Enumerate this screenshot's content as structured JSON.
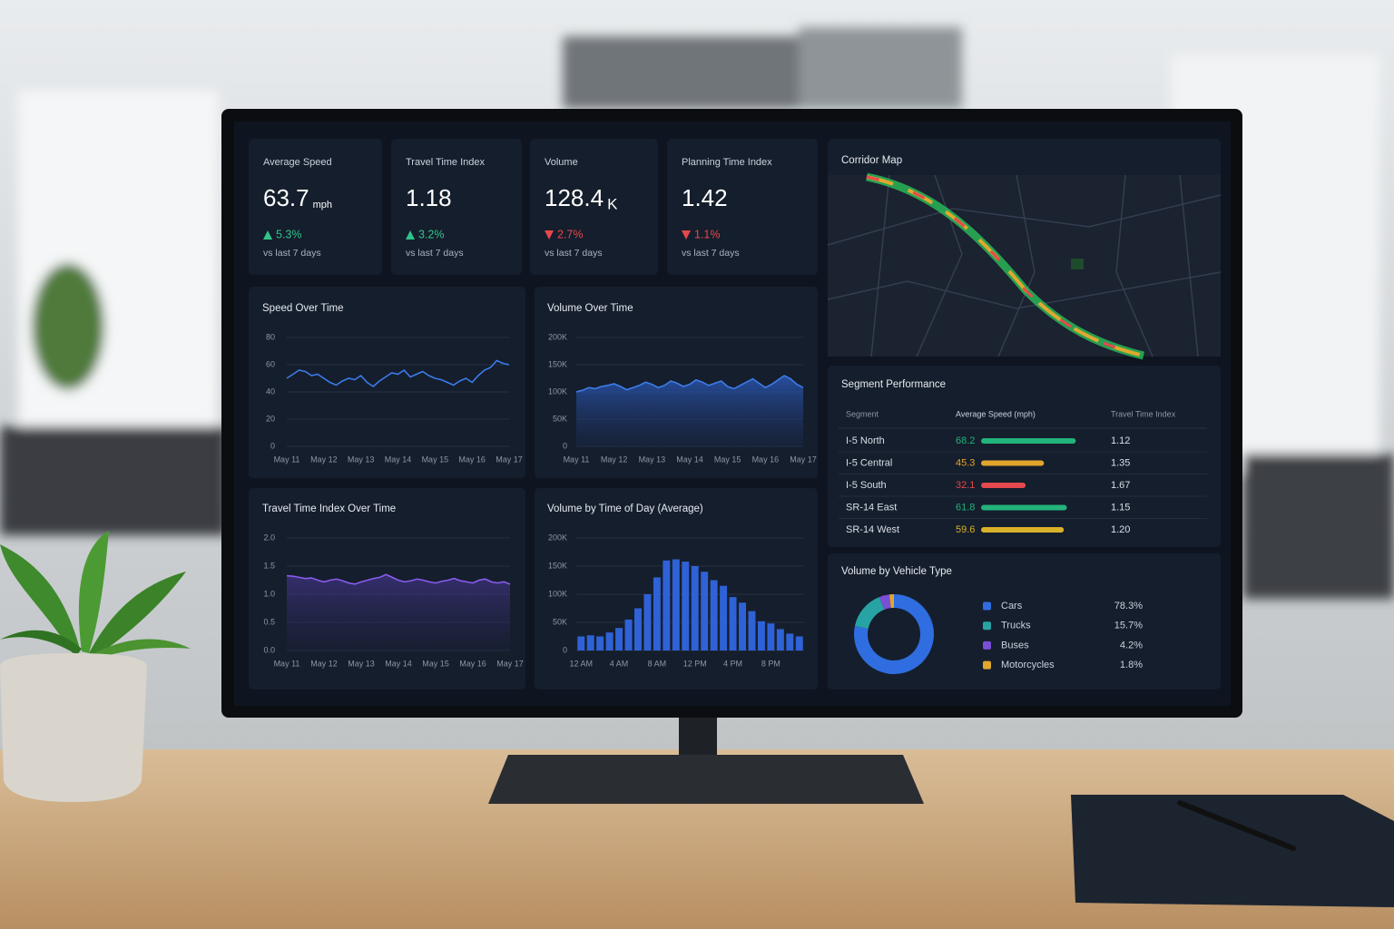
{
  "kpis": [
    {
      "label": "Average Speed",
      "value": 63.7,
      "unit": "mph",
      "change": "5.3%",
      "direction": "up",
      "note": "vs last 7 days"
    },
    {
      "label": "Travel Time Index",
      "value": 1.18,
      "change": "3.2%",
      "direction": "up",
      "note": "vs last 7 days"
    },
    {
      "label": "Volume",
      "value": 128.4,
      "unit": "K",
      "change": "2.7%",
      "direction": "down",
      "note": "vs last 7 days"
    },
    {
      "label": "Planning Time Index",
      "value": 1.42,
      "change": "1.1%",
      "direction": "down",
      "note": "vs last 7 days"
    }
  ],
  "corridor_map": {
    "title": "Corridor Map"
  },
  "segment_performance": {
    "title": "Segment Performance",
    "headers": [
      "Segment",
      "Average Speed (mph)",
      "Travel Time Index"
    ],
    "rows": [
      [
        "I-5 North",
        68.2,
        "1.12"
      ],
      [
        "I-5 Central",
        45.3,
        "1.35"
      ],
      [
        "I-5 South",
        32.1,
        "1.67"
      ],
      [
        "SR-14 East",
        61.8,
        "1.15"
      ],
      [
        "SR-14 West",
        59.6,
        "1.20"
      ]
    ],
    "bar_colors": [
      "#22b37a",
      "#e0a52c",
      "#e5484d",
      "#22b37a",
      "#d9b22a"
    ]
  },
  "chart_data": [
    {
      "type": "line",
      "title": "Speed Over Time",
      "color": "#3b7bea",
      "grid": true,
      "categories": [
        "May 11",
        null,
        null,
        null,
        null,
        null,
        "May 12",
        null,
        null,
        null,
        null,
        null,
        "May 13",
        null,
        null,
        null,
        null,
        null,
        "May 14",
        null,
        null,
        null,
        null,
        null,
        "May 15",
        null,
        null,
        null,
        null,
        null,
        "May 16",
        null,
        null,
        null,
        null,
        null,
        "May 17"
      ],
      "values": [
        50,
        53,
        56,
        55,
        52,
        53,
        50,
        47,
        45,
        48,
        50,
        49,
        52,
        47,
        44,
        48,
        51,
        54,
        53,
        56,
        51,
        53,
        55,
        52,
        50,
        49,
        47,
        45,
        48,
        50,
        47,
        52,
        56,
        58,
        63,
        61,
        60
      ],
      "ylim": [
        0,
        80
      ],
      "yticks": [
        0,
        20,
        40,
        60,
        80
      ]
    },
    {
      "type": "area",
      "title": "Volume Over Time",
      "color": "#3d7ce8",
      "grid": true,
      "categories": [
        "May 11",
        null,
        null,
        null,
        null,
        null,
        "May 12",
        null,
        null,
        null,
        null,
        null,
        "May 13",
        null,
        null,
        null,
        null,
        null,
        "May 14",
        null,
        null,
        null,
        null,
        null,
        "May 15",
        null,
        null,
        null,
        null,
        null,
        "May 16",
        null,
        null,
        null,
        null,
        null,
        "May 17"
      ],
      "values": [
        100000,
        103000,
        108000,
        106000,
        110000,
        112000,
        115000,
        110000,
        104000,
        108000,
        112000,
        118000,
        114000,
        108000,
        112000,
        120000,
        116000,
        110000,
        114000,
        122000,
        118000,
        112000,
        116000,
        120000,
        110000,
        106000,
        112000,
        118000,
        124000,
        116000,
        108000,
        114000,
        122000,
        130000,
        124000,
        114000,
        108000
      ],
      "ylim": [
        0,
        200000
      ],
      "yticks": [
        0,
        {
          "value": 50000,
          "label": "50K"
        },
        {
          "value": 100000,
          "label": "100K"
        },
        {
          "value": 150000,
          "label": "150K"
        },
        {
          "value": 200000,
          "label": "200K"
        }
      ]
    },
    {
      "type": "area",
      "title": "Travel Time Index Over Time",
      "color": "#8a5cf0",
      "grid": true,
      "categories": [
        "May 11",
        null,
        null,
        null,
        null,
        null,
        "May 12",
        null,
        null,
        null,
        null,
        null,
        "May 13",
        null,
        null,
        null,
        null,
        null,
        "May 14",
        null,
        null,
        null,
        null,
        null,
        "May 15",
        null,
        null,
        null,
        null,
        null,
        "May 16",
        null,
        null,
        null,
        null,
        null,
        "May 17"
      ],
      "values": [
        1.33,
        1.32,
        1.3,
        1.28,
        1.29,
        1.25,
        1.22,
        1.25,
        1.27,
        1.24,
        1.2,
        1.18,
        1.22,
        1.25,
        1.28,
        1.3,
        1.35,
        1.3,
        1.25,
        1.22,
        1.24,
        1.27,
        1.25,
        1.22,
        1.2,
        1.23,
        1.25,
        1.28,
        1.24,
        1.22,
        1.2,
        1.25,
        1.27,
        1.22,
        1.2,
        1.22,
        1.18
      ],
      "ylim": [
        0,
        2
      ],
      "yticks": [
        {
          "value": 0,
          "label": "0.0"
        },
        0.5,
        {
          "value": 1,
          "label": "1.0"
        },
        1.5,
        {
          "value": 2,
          "label": "2.0"
        }
      ]
    },
    {
      "type": "bar",
      "title": "Volume by Time of Day (Average)",
      "color": "#2f62d6",
      "grid": true,
      "categories": [
        "12 AM",
        null,
        null,
        null,
        "4 AM",
        null,
        null,
        null,
        "8 AM",
        null,
        null,
        null,
        "12 PM",
        null,
        null,
        null,
        "4 PM",
        null,
        null,
        null,
        "8 PM",
        null,
        null,
        null
      ],
      "values": [
        25000,
        27000,
        25000,
        32000,
        40000,
        55000,
        75000,
        100000,
        130000,
        160000,
        162000,
        158000,
        150000,
        140000,
        125000,
        115000,
        95000,
        85000,
        70000,
        52000,
        48000,
        38000,
        30000,
        25000
      ],
      "ylim": [
        0,
        200000
      ],
      "yticks": [
        0,
        {
          "value": 50000,
          "label": "50K"
        },
        {
          "value": 100000,
          "label": "100K"
        },
        {
          "value": 150000,
          "label": "150K"
        },
        {
          "value": 200000,
          "label": "200K"
        }
      ]
    },
    {
      "type": "donut",
      "title": "Volume by Vehicle Type",
      "categories": [
        "Cars",
        "Trucks",
        "Buses",
        "Motorcycles"
      ],
      "values": [
        78.3,
        15.7,
        4.2,
        1.8
      ],
      "value_labels": [
        "78.3%",
        "15.7%",
        "4.2%",
        "1.8%"
      ],
      "colors": [
        "#2f6de0",
        "#27a3a3",
        "#7a4fd6",
        "#e0a82e"
      ]
    }
  ]
}
